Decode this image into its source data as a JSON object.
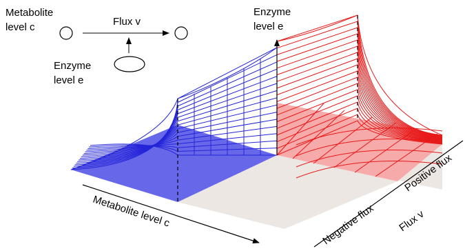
{
  "inset": {
    "metabolite_line1": "Metabolite",
    "metabolite_line2": "level c",
    "flux_label": "Flux v",
    "enzyme_line1": "Enzyme",
    "enzyme_line2": "level e"
  },
  "axes": {
    "enzyme_line1": "Enzyme",
    "enzyme_line2": "level e",
    "metabolite_axis": "Metabolite level c",
    "flux_axis": "Flux v",
    "positive_flux": "Positive flux",
    "negative_flux": "Negative flux"
  },
  "colors": {
    "blue_surface": "#5a5ae8",
    "blue_line": "#2424d8",
    "red_surface": "#f7a3a3",
    "red_line": "#e81818",
    "grey_plane": "#ece7e2"
  }
}
